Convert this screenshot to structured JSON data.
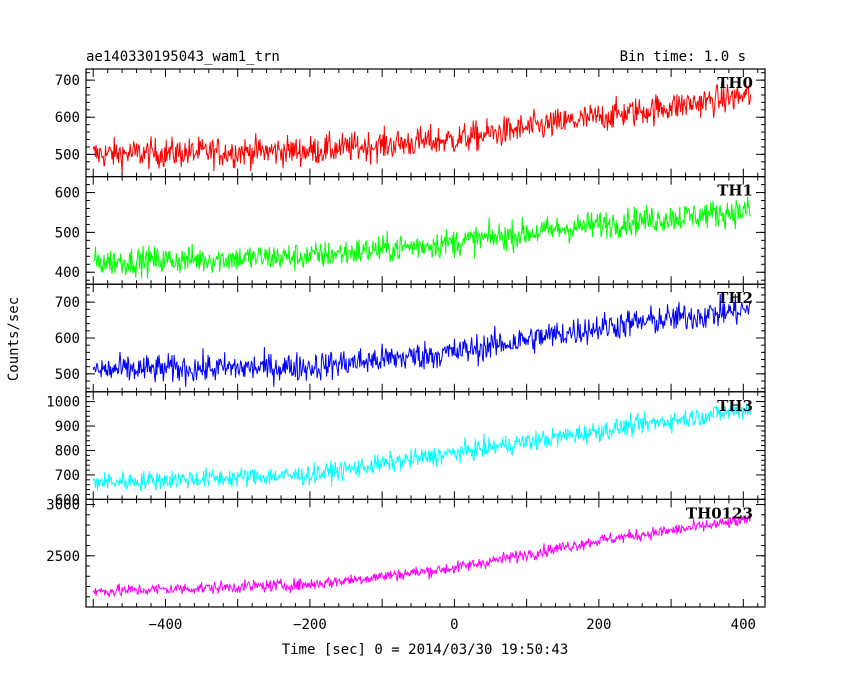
{
  "header": {
    "title": "ae140330195043_wam1_trn",
    "bin_time": "Bin time: 1.0 s"
  },
  "axes": {
    "xlabel": "Time [sec] 0 = 2014/03/30 19:50:43",
    "ylabel": "Counts/sec"
  },
  "chart_data": {
    "type": "line",
    "x_range": [
      -510,
      430
    ],
    "x_ticks": [
      -400,
      -200,
      0,
      200,
      400
    ],
    "x_tick_labels": [
      "−400",
      "−200",
      "0",
      "200",
      "400"
    ],
    "series": [
      {
        "name": "TH0",
        "color": "#ff0000",
        "ylim": [
          440,
          730
        ],
        "y_ticks": [
          500,
          600,
          700
        ],
        "y_tick_labels": [
          "500",
          "600",
          "700"
        ],
        "trend": [
          [
            -500,
            500
          ],
          [
            -200,
            510
          ],
          [
            0,
            540
          ],
          [
            200,
            600
          ],
          [
            410,
            660
          ]
        ],
        "noise": 40
      },
      {
        "name": "TH1",
        "color": "#00ff00",
        "ylim": [
          370,
          640
        ],
        "y_ticks": [
          400,
          500,
          600
        ],
        "y_tick_labels": [
          "400",
          "500",
          "600"
        ],
        "trend": [
          [
            -500,
            425
          ],
          [
            -200,
            440
          ],
          [
            0,
            475
          ],
          [
            200,
            520
          ],
          [
            410,
            555
          ]
        ],
        "noise": 35
      },
      {
        "name": "TH2",
        "color": "#0000ff",
        "ylim": [
          450,
          750
        ],
        "y_ticks": [
          500,
          600,
          700
        ],
        "y_tick_labels": [
          "500",
          "600",
          "700"
        ],
        "trend": [
          [
            -500,
            510
          ],
          [
            -200,
            520
          ],
          [
            0,
            560
          ],
          [
            200,
            630
          ],
          [
            410,
            680
          ]
        ],
        "noise": 40
      },
      {
        "name": "TH3",
        "color": "#00ffff",
        "ylim": [
          600,
          1040
        ],
        "y_ticks": [
          600,
          700,
          800,
          900,
          1000
        ],
        "y_tick_labels": [
          "600",
          "700",
          "800",
          "900",
          "1000"
        ],
        "trend": [
          [
            -500,
            670
          ],
          [
            -200,
            700
          ],
          [
            0,
            790
          ],
          [
            200,
            880
          ],
          [
            410,
            970
          ]
        ],
        "noise": 40
      },
      {
        "name": "TH0123",
        "color": "#ff00ff",
        "ylim": [
          2000,
          3050
        ],
        "y_ticks": [
          2500,
          3000
        ],
        "y_tick_labels": [
          "2500",
          "3000"
        ],
        "trend": [
          [
            -500,
            2150
          ],
          [
            -200,
            2220
          ],
          [
            0,
            2380
          ],
          [
            200,
            2650
          ],
          [
            410,
            2850
          ]
        ],
        "noise": 60
      }
    ]
  }
}
